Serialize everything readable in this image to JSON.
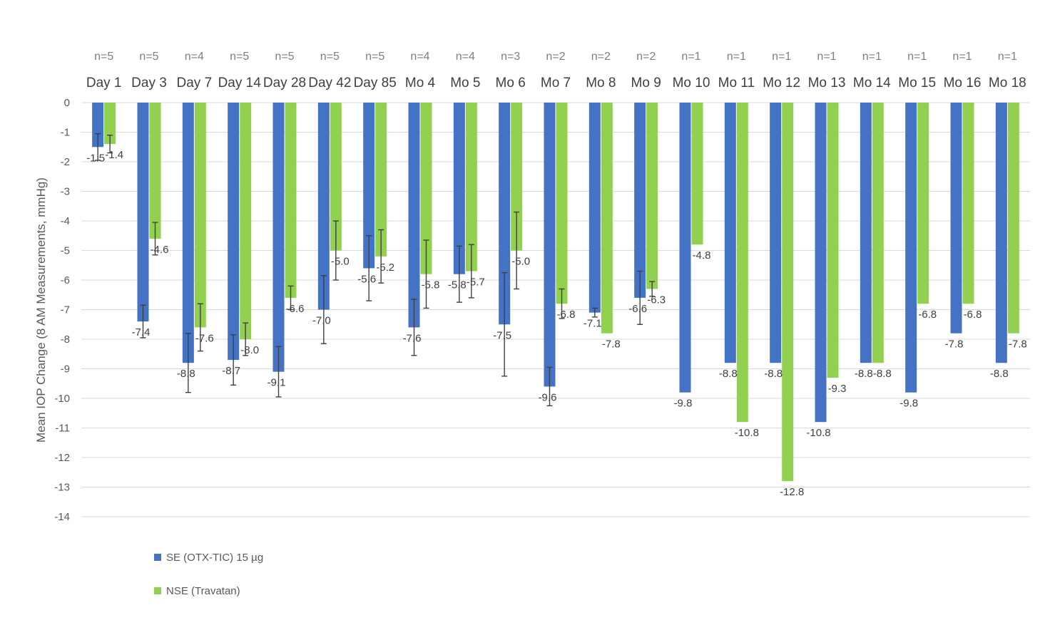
{
  "chart_data": {
    "type": "bar",
    "title": "",
    "xlabel": "",
    "ylabel": "Mean IOP Change (8 AM Measurements, mmHg)",
    "ylim": [
      -14,
      0
    ],
    "yticks": [
      0,
      -1,
      -2,
      -3,
      -4,
      -5,
      -6,
      -7,
      -8,
      -9,
      -10,
      -11,
      -12,
      -13,
      -14
    ],
    "grid": true,
    "legend_position": "bottom-left",
    "categories": [
      "Day 1",
      "Day 3",
      "Day 7",
      "Day 14",
      "Day 28",
      "Day 42",
      "Day 85",
      "Mo 4",
      "Mo 5",
      "Mo 6",
      "Mo 7",
      "Mo 8",
      "Mo 9",
      "Mo 10",
      "Mo 11",
      "Mo 12",
      "Mo 13",
      "Mo 14",
      "Mo 15",
      "Mo 16",
      "Mo 18"
    ],
    "n_counts": [
      "n=5",
      "n=5",
      "n=4",
      "n=5",
      "n=5",
      "n=5",
      "n=5",
      "n=4",
      "n=4",
      "n=3",
      "n=2",
      "n=2",
      "n=2",
      "n=1",
      "n=1",
      "n=1",
      "n=1",
      "n=1",
      "n=1",
      "n=1",
      "n=1"
    ],
    "series": [
      {
        "name": "SE (OTX-TIC) 15 µg",
        "color": "#4472C4",
        "values": [
          -1.5,
          -7.4,
          -8.8,
          -8.7,
          -9.1,
          -7.0,
          -5.6,
          -7.6,
          -5.8,
          -7.5,
          -9.6,
          -7.1,
          -6.6,
          -9.8,
          -8.8,
          -8.8,
          -10.8,
          -8.8,
          -9.8,
          -7.8,
          -8.8
        ],
        "labels": [
          "-1.5",
          "-7.4",
          "-8.8",
          "-8.7",
          "-9.1",
          "-7.0",
          "-5.6",
          "-7.6",
          "-5.8",
          "-7.5",
          "-9.6",
          "-7.1",
          "-6.6",
          "-9.8",
          "-8.8",
          "-8.8",
          "-10.8",
          "-8.8",
          "-9.8",
          "-7.8",
          "-8.8"
        ],
        "error": [
          0.45,
          0.55,
          1.0,
          0.85,
          0.85,
          1.15,
          1.1,
          0.95,
          0.95,
          1.75,
          0.65,
          0.15,
          0.9,
          null,
          null,
          null,
          null,
          null,
          null,
          null,
          null
        ]
      },
      {
        "name": "NSE (Travatan)",
        "color": "#92D050",
        "values": [
          -1.4,
          -4.6,
          -7.6,
          -8.0,
          -6.6,
          -5.0,
          -5.2,
          -5.8,
          -5.7,
          -5.0,
          -6.8,
          -7.8,
          -6.3,
          -4.8,
          -10.8,
          -12.8,
          -9.3,
          -8.8,
          -6.8,
          -6.8,
          -7.8
        ],
        "labels": [
          "-1.4",
          "-4.6",
          "-7.6",
          "-8.0",
          "-6.6",
          "-5.0",
          "-5.2",
          "-5.8",
          "-5.7",
          "-5.0",
          "-6.8",
          "-7.8",
          "-6.3",
          "-4.8",
          "-10.8",
          "-12.8",
          "-9.3",
          "-8.8",
          "-6.8",
          "-6.8",
          "-7.8"
        ],
        "error": [
          0.3,
          0.55,
          0.8,
          0.55,
          0.4,
          1.0,
          0.9,
          1.15,
          0.9,
          1.3,
          0.5,
          null,
          0.25,
          null,
          null,
          null,
          null,
          null,
          null,
          null,
          null
        ]
      }
    ]
  }
}
